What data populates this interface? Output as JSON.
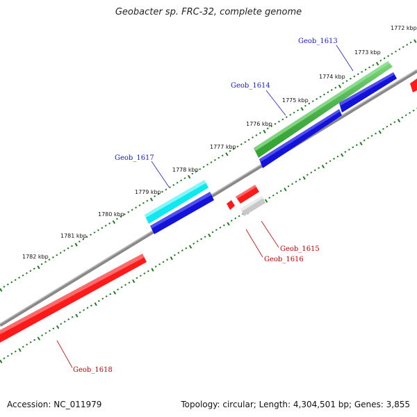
{
  "title": "Geobacter sp. FRC-32, complete genome",
  "footer": {
    "accession": "Accession: NC_011979",
    "summary": "Topology: circular; Length: 4,304,501 bp; Genes: 3,855"
  },
  "colors": {
    "backbone": "#888888",
    "tick": "#1e7a1e",
    "forward_label": "#1a1ad6",
    "reverse_label": "#cc0000",
    "red": "#ff1a1a",
    "blue": "#1212d8",
    "green": "#3cc23c",
    "cyan": "#10e8f0",
    "gray": "#c8c8c8"
  },
  "kbp_labels": [
    "1772 kbp",
    "1773 kbp",
    "1774 kbp",
    "1775 kbp",
    "1776 kbp",
    "1777 kbp",
    "1778 kbp",
    "1779 kbp",
    "1780 kbp",
    "1781 kbp",
    "1782 kbp"
  ],
  "genes": [
    {
      "name": "Geob_1613",
      "strand": "forward"
    },
    {
      "name": "Geob_1614",
      "strand": "forward"
    },
    {
      "name": "Geob_1617",
      "strand": "forward"
    },
    {
      "name": "Geob_1615",
      "strand": "reverse"
    },
    {
      "name": "Geob_1616",
      "strand": "reverse"
    },
    {
      "name": "Geob_1618",
      "strand": "reverse"
    }
  ]
}
